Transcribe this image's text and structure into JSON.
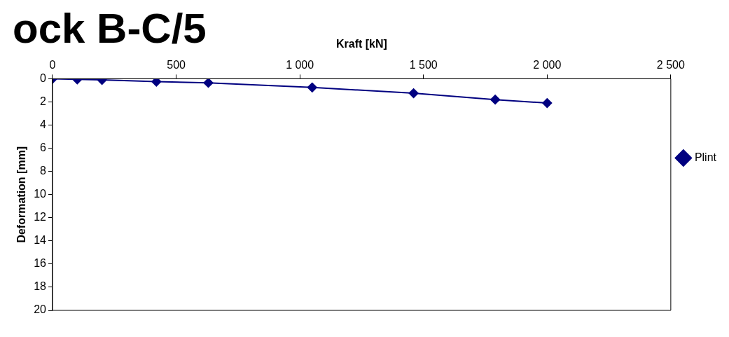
{
  "chart_data": {
    "type": "line",
    "title": "ock B-C/5",
    "xlabel": "Kraft [kN]",
    "ylabel": "Deformation [mm]",
    "x": [
      0,
      100,
      200,
      420,
      630,
      1050,
      1460,
      1790,
      2000
    ],
    "series": [
      {
        "name": "Plint",
        "color": "#000080",
        "values": [
          0,
          0.05,
          0.1,
          0.25,
          0.35,
          0.75,
          1.25,
          1.8,
          2.1
        ]
      }
    ],
    "xlim": [
      0,
      2500
    ],
    "xticks": [
      0,
      500,
      {
        "value": 1000,
        "label": "1 000"
      },
      {
        "value": 1500,
        "label": "1 500"
      },
      {
        "value": 2000,
        "label": "2 000"
      },
      {
        "value": 2500,
        "label": "2 500"
      }
    ],
    "ylim": [
      20,
      0
    ],
    "yticks": [
      0,
      2,
      4,
      6,
      8,
      10,
      12,
      14,
      16,
      18,
      20
    ],
    "grid": false,
    "legend": "right",
    "marker": "diamond",
    "line_style": "solid"
  }
}
